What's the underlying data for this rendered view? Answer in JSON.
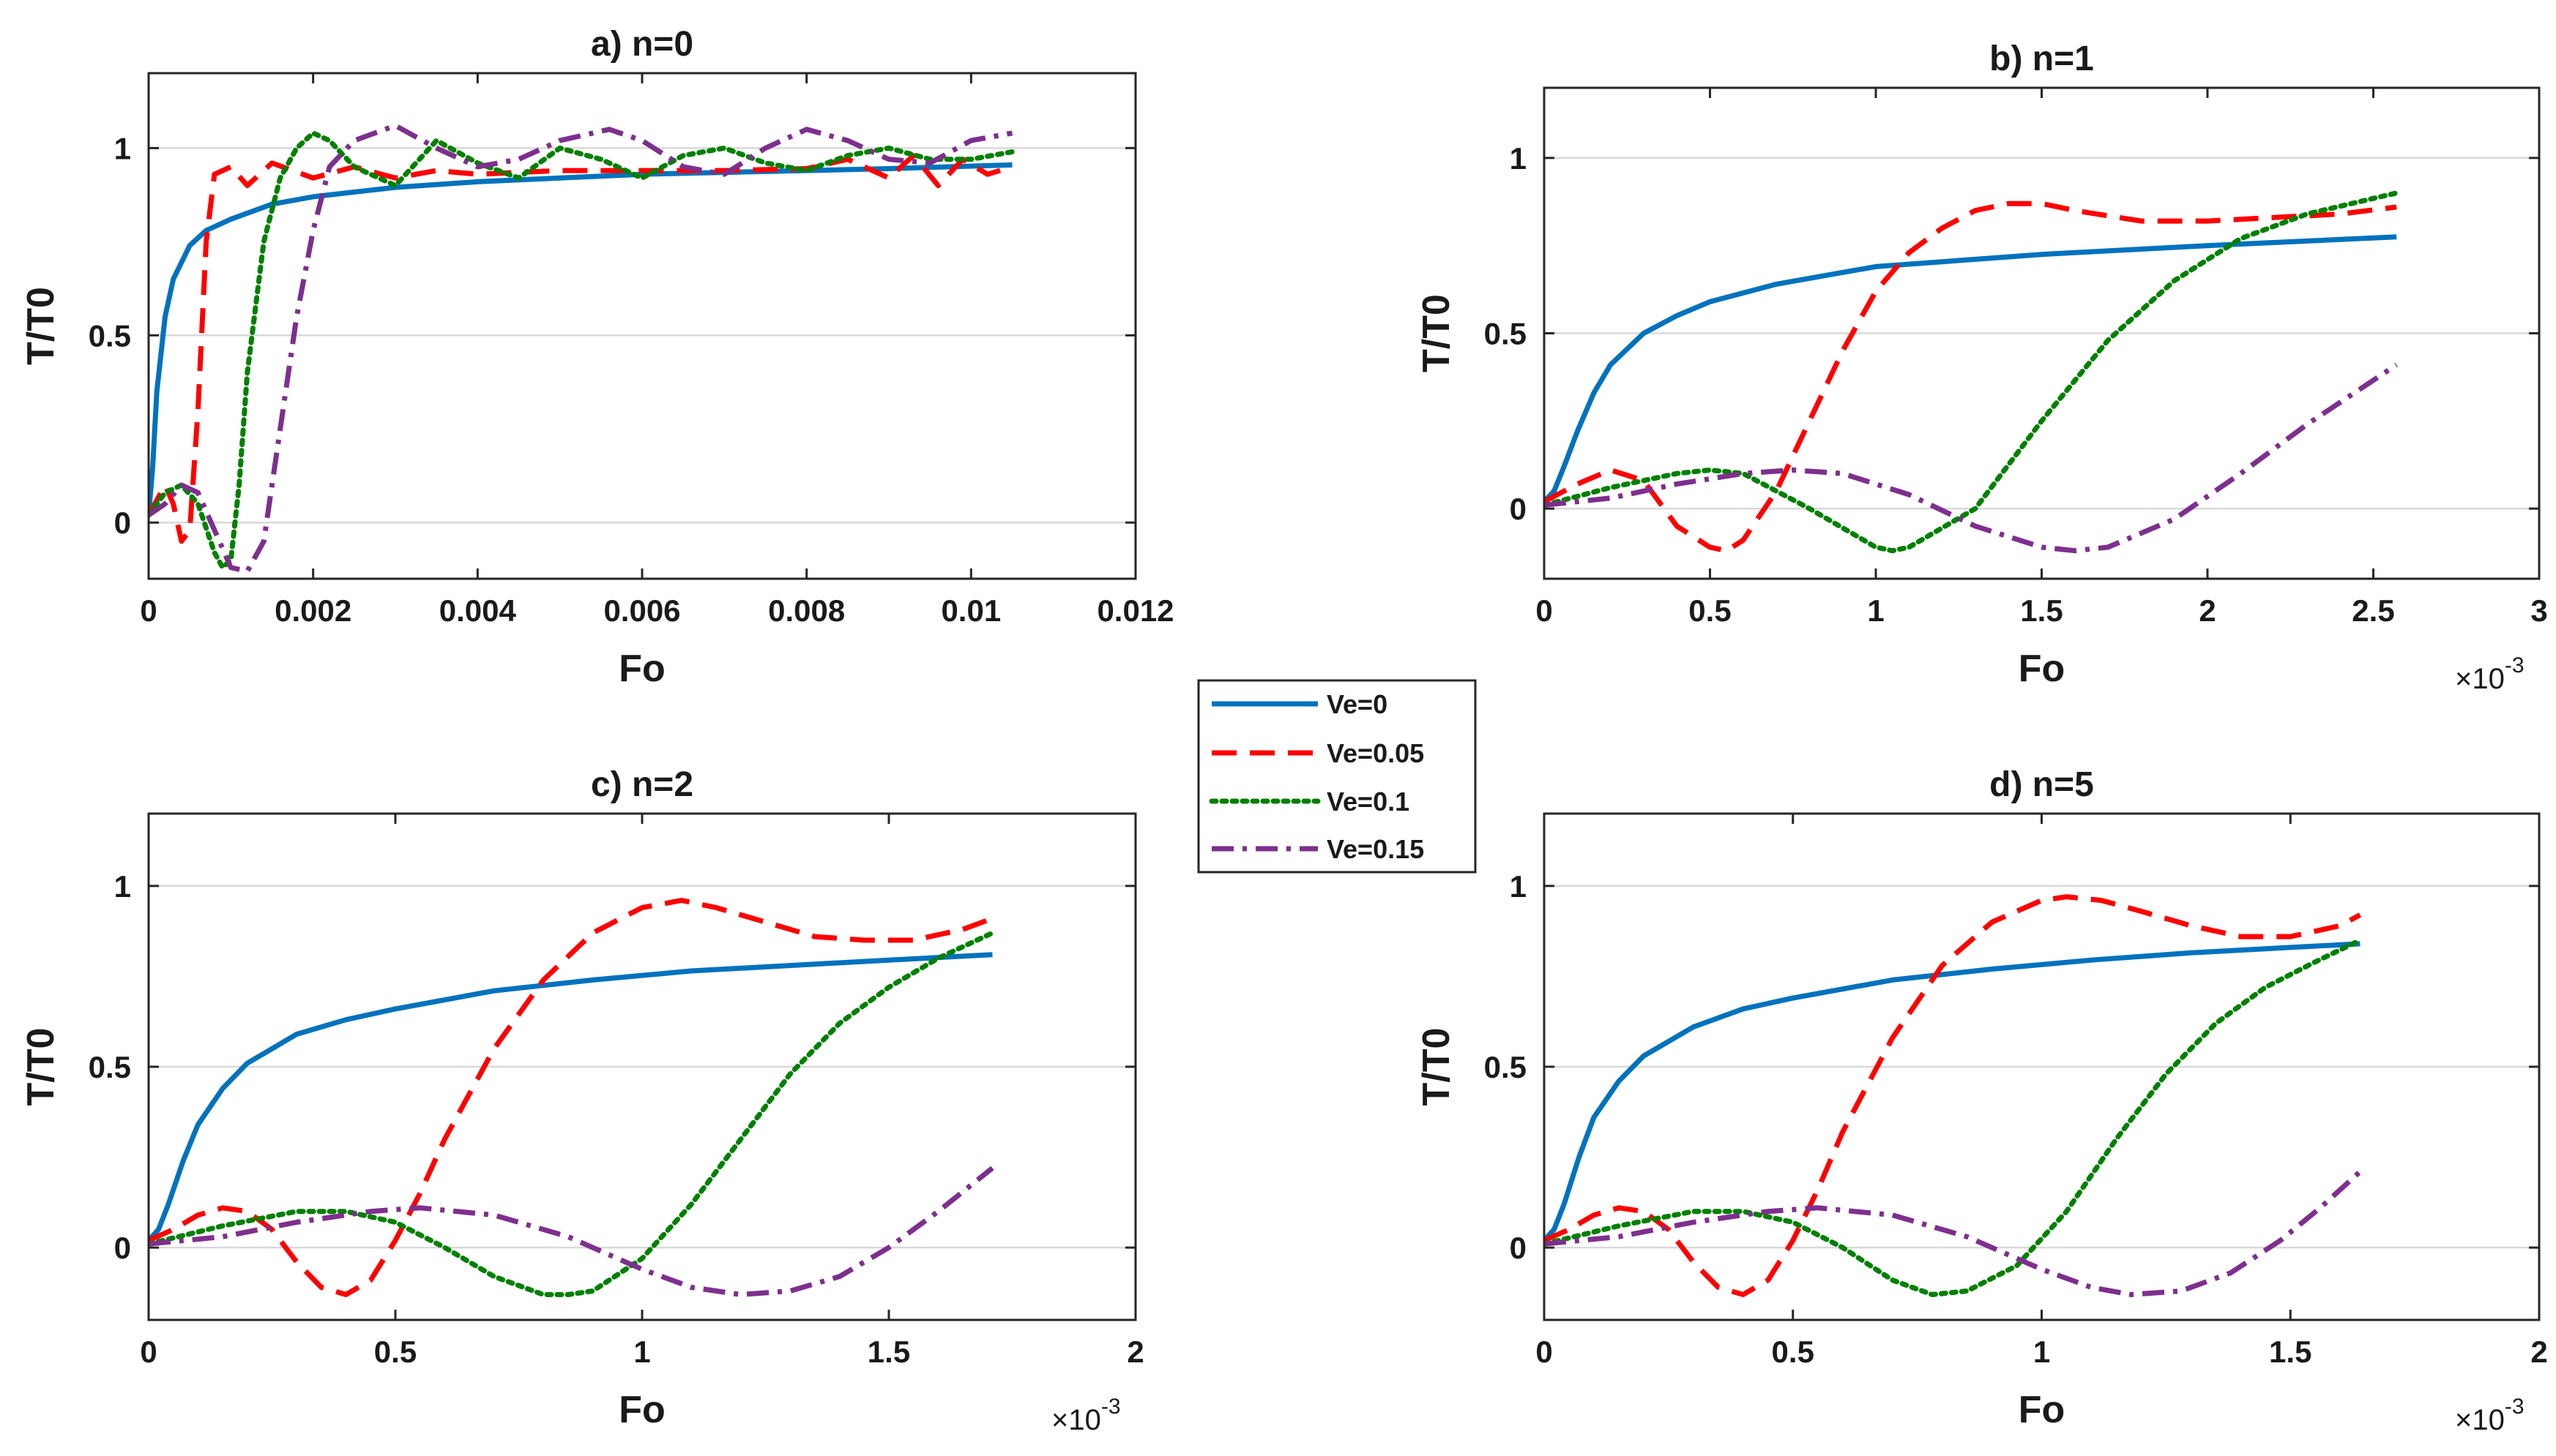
{
  "chart_data": [
    {
      "type": "line",
      "title": "a) n=0",
      "xlabel": "Fo",
      "ylabel": "T/T0",
      "xlim": [
        0,
        0.012
      ],
      "ylim": [
        -0.15,
        1.2
      ],
      "xticks": [
        0,
        0.002,
        0.004,
        0.006,
        0.008,
        0.01,
        0.012
      ],
      "xtick_labels": [
        "0",
        "0.002",
        "0.004",
        "0.006",
        "0.008",
        "0.01",
        "0.012"
      ],
      "yticks": [
        0,
        0.5,
        1
      ],
      "ytick_labels": [
        "0",
        "0.5",
        "1"
      ],
      "x_exponent": "",
      "grid": "horizontal",
      "series": [
        {
          "name": "Ve=0",
          "x": [
            0,
            5e-05,
            0.0001,
            0.0002,
            0.0003,
            0.0005,
            0.0007,
            0.001,
            0.0015,
            0.002,
            0.003,
            0.004,
            0.005,
            0.006,
            0.007,
            0.008,
            0.009,
            0.0105
          ],
          "y": [
            0.02,
            0.15,
            0.35,
            0.55,
            0.65,
            0.74,
            0.78,
            0.81,
            0.85,
            0.87,
            0.895,
            0.91,
            0.92,
            0.93,
            0.935,
            0.94,
            0.945,
            0.955
          ]
        },
        {
          "name": "Ve=0.05",
          "x": [
            0,
            0.0001,
            0.0002,
            0.0003,
            0.0004,
            0.0005,
            0.0006,
            0.0007,
            0.0008,
            0.001,
            0.0012,
            0.0015,
            0.002,
            0.0025,
            0.003,
            0.0035,
            0.004,
            0.005,
            0.006,
            0.007,
            0.008,
            0.0085,
            0.009,
            0.0093,
            0.0096,
            0.0099,
            0.0102,
            0.0105
          ],
          "y": [
            0.02,
            0.06,
            0.1,
            0.05,
            -0.05,
            -0.02,
            0.3,
            0.75,
            0.93,
            0.95,
            0.9,
            0.96,
            0.92,
            0.95,
            0.92,
            0.94,
            0.93,
            0.94,
            0.94,
            0.94,
            0.945,
            0.97,
            0.92,
            0.98,
            0.9,
            0.97,
            0.93,
            0.95
          ]
        },
        {
          "name": "Ve=0.1",
          "x": [
            0,
            0.0002,
            0.0004,
            0.0006,
            0.0008,
            0.0009,
            0.001,
            0.0011,
            0.0012,
            0.0014,
            0.0016,
            0.0018,
            0.002,
            0.0022,
            0.0025,
            0.003,
            0.0035,
            0.004,
            0.0045,
            0.005,
            0.0055,
            0.006,
            0.0065,
            0.007,
            0.0075,
            0.008,
            0.0085,
            0.009,
            0.0095,
            0.01,
            0.0105
          ],
          "y": [
            0.02,
            0.08,
            0.1,
            0.05,
            -0.08,
            -0.12,
            -0.1,
            0.1,
            0.4,
            0.75,
            0.92,
            1.0,
            1.04,
            1.02,
            0.95,
            0.9,
            1.02,
            0.96,
            0.92,
            1.0,
            0.97,
            0.92,
            0.98,
            1.0,
            0.96,
            0.94,
            0.98,
            1.0,
            0.97,
            0.97,
            0.99
          ]
        },
        {
          "name": "Ve=0.15",
          "x": [
            0,
            0.0002,
            0.0004,
            0.0006,
            0.0008,
            0.001,
            0.0012,
            0.0014,
            0.0016,
            0.0018,
            0.002,
            0.0022,
            0.0025,
            0.003,
            0.0035,
            0.004,
            0.0045,
            0.005,
            0.0056,
            0.006,
            0.0065,
            0.007,
            0.0075,
            0.008,
            0.0085,
            0.009,
            0.0095,
            0.01,
            0.0105
          ],
          "y": [
            0.02,
            0.05,
            0.1,
            0.08,
            -0.02,
            -0.12,
            -0.13,
            -0.05,
            0.25,
            0.55,
            0.78,
            0.95,
            1.02,
            1.06,
            1.0,
            0.95,
            0.97,
            1.02,
            1.05,
            1.02,
            0.95,
            0.93,
            1.0,
            1.05,
            1.02,
            0.97,
            0.96,
            1.02,
            1.04
          ]
        }
      ]
    },
    {
      "type": "line",
      "title": "b) n=1",
      "xlabel": "Fo",
      "ylabel": "T/T0",
      "xlim": [
        0,
        3
      ],
      "ylim": [
        -0.2,
        1.2
      ],
      "xticks": [
        0,
        0.5,
        1,
        1.5,
        2,
        2.5,
        3
      ],
      "xtick_labels": [
        "0",
        "0.5",
        "1",
        "1.5",
        "2",
        "2.5",
        "3"
      ],
      "yticks": [
        0,
        0.5,
        1
      ],
      "ytick_labels": [
        "0",
        "0.5",
        "1"
      ],
      "x_exponent": "-3",
      "grid": "horizontal",
      "series": [
        {
          "name": "Ve=0",
          "x": [
            0,
            0.03,
            0.06,
            0.1,
            0.15,
            0.2,
            0.3,
            0.4,
            0.5,
            0.7,
            1.0,
            1.5,
            2.0,
            2.57
          ],
          "y": [
            0.02,
            0.05,
            0.12,
            0.22,
            0.33,
            0.41,
            0.5,
            0.55,
            0.59,
            0.64,
            0.69,
            0.725,
            0.75,
            0.775
          ]
        },
        {
          "name": "Ve=0.05",
          "x": [
            0,
            0.1,
            0.2,
            0.3,
            0.4,
            0.5,
            0.55,
            0.6,
            0.7,
            0.8,
            0.9,
            1.0,
            1.1,
            1.2,
            1.3,
            1.4,
            1.5,
            1.6,
            1.8,
            2.0,
            2.2,
            2.4,
            2.57
          ],
          "y": [
            0.02,
            0.07,
            0.11,
            0.08,
            -0.05,
            -0.11,
            -0.12,
            -0.09,
            0.05,
            0.25,
            0.45,
            0.62,
            0.73,
            0.8,
            0.85,
            0.87,
            0.87,
            0.85,
            0.82,
            0.82,
            0.83,
            0.84,
            0.86
          ]
        },
        {
          "name": "Ve=0.1",
          "x": [
            0,
            0.2,
            0.4,
            0.5,
            0.6,
            0.8,
            1.0,
            1.05,
            1.1,
            1.3,
            1.5,
            1.7,
            1.9,
            2.1,
            2.3,
            2.57
          ],
          "y": [
            0.01,
            0.06,
            0.1,
            0.11,
            0.1,
            0.0,
            -0.11,
            -0.12,
            -0.11,
            0.0,
            0.25,
            0.48,
            0.65,
            0.77,
            0.84,
            0.9
          ]
        },
        {
          "name": "Ve=0.15",
          "x": [
            0,
            0.2,
            0.4,
            0.6,
            0.75,
            0.9,
            1.1,
            1.3,
            1.5,
            1.6,
            1.7,
            1.9,
            2.1,
            2.3,
            2.57
          ],
          "y": [
            0.01,
            0.03,
            0.07,
            0.1,
            0.11,
            0.1,
            0.04,
            -0.05,
            -0.11,
            -0.12,
            -0.11,
            -0.03,
            0.1,
            0.24,
            0.41
          ]
        }
      ]
    },
    {
      "type": "line",
      "title": "c) n=2",
      "xlabel": "Fo",
      "ylabel": "T/T0",
      "xlim": [
        0,
        2
      ],
      "ylim": [
        -0.2,
        1.2
      ],
      "xticks": [
        0,
        0.5,
        1,
        1.5,
        2
      ],
      "xtick_labels": [
        "0",
        "0.5",
        "1",
        "1.5",
        "2"
      ],
      "yticks": [
        0,
        0.5,
        1
      ],
      "ytick_labels": [
        "0",
        "0.5",
        "1"
      ],
      "x_exponent": "-3",
      "grid": "horizontal",
      "series": [
        {
          "name": "Ve=0",
          "x": [
            0,
            0.02,
            0.04,
            0.07,
            0.1,
            0.15,
            0.2,
            0.3,
            0.4,
            0.5,
            0.7,
            0.9,
            1.1,
            1.3,
            1.5,
            1.71
          ],
          "y": [
            0.02,
            0.05,
            0.12,
            0.24,
            0.34,
            0.44,
            0.51,
            0.59,
            0.63,
            0.66,
            0.71,
            0.74,
            0.765,
            0.78,
            0.795,
            0.81
          ]
        },
        {
          "name": "Ve=0.05",
          "x": [
            0,
            0.05,
            0.1,
            0.15,
            0.2,
            0.25,
            0.3,
            0.35,
            0.4,
            0.45,
            0.5,
            0.55,
            0.6,
            0.7,
            0.8,
            0.9,
            1.0,
            1.08,
            1.15,
            1.25,
            1.35,
            1.45,
            1.55,
            1.65,
            1.71
          ],
          "y": [
            0.02,
            0.05,
            0.09,
            0.11,
            0.1,
            0.05,
            -0.04,
            -0.11,
            -0.13,
            -0.09,
            0.02,
            0.15,
            0.3,
            0.55,
            0.74,
            0.87,
            0.94,
            0.96,
            0.94,
            0.9,
            0.86,
            0.85,
            0.85,
            0.88,
            0.91
          ]
        },
        {
          "name": "Ve=0.1",
          "x": [
            0,
            0.15,
            0.3,
            0.4,
            0.5,
            0.6,
            0.7,
            0.8,
            0.85,
            0.9,
            1.0,
            1.1,
            1.2,
            1.3,
            1.4,
            1.5,
            1.6,
            1.71
          ],
          "y": [
            0.01,
            0.06,
            0.1,
            0.1,
            0.07,
            0.0,
            -0.08,
            -0.13,
            -0.13,
            -0.12,
            -0.03,
            0.12,
            0.3,
            0.48,
            0.62,
            0.72,
            0.8,
            0.87
          ]
        },
        {
          "name": "Ve=0.15",
          "x": [
            0,
            0.15,
            0.3,
            0.45,
            0.55,
            0.7,
            0.85,
            1.0,
            1.1,
            1.2,
            1.3,
            1.4,
            1.5,
            1.6,
            1.71
          ],
          "y": [
            0.01,
            0.03,
            0.07,
            0.1,
            0.11,
            0.09,
            0.03,
            -0.06,
            -0.11,
            -0.13,
            -0.12,
            -0.08,
            0.0,
            0.1,
            0.22
          ]
        }
      ]
    },
    {
      "type": "line",
      "title": "d) n=5",
      "xlabel": "Fo",
      "ylabel": "T/T0",
      "xlim": [
        0,
        2
      ],
      "ylim": [
        -0.2,
        1.2
      ],
      "xticks": [
        0,
        0.5,
        1,
        1.5,
        2
      ],
      "xtick_labels": [
        "0",
        "0.5",
        "1",
        "1.5",
        "2"
      ],
      "yticks": [
        0,
        0.5,
        1
      ],
      "ytick_labels": [
        "0",
        "0.5",
        "1"
      ],
      "x_exponent": "-3",
      "grid": "horizontal",
      "series": [
        {
          "name": "Ve=0",
          "x": [
            0,
            0.02,
            0.04,
            0.07,
            0.1,
            0.15,
            0.2,
            0.3,
            0.4,
            0.5,
            0.7,
            0.9,
            1.1,
            1.3,
            1.5,
            1.64
          ],
          "y": [
            0.02,
            0.05,
            0.12,
            0.25,
            0.36,
            0.46,
            0.53,
            0.61,
            0.66,
            0.69,
            0.74,
            0.77,
            0.795,
            0.815,
            0.83,
            0.84
          ]
        },
        {
          "name": "Ve=0.05",
          "x": [
            0,
            0.05,
            0.1,
            0.15,
            0.2,
            0.25,
            0.3,
            0.35,
            0.4,
            0.45,
            0.5,
            0.55,
            0.6,
            0.7,
            0.8,
            0.9,
            1.0,
            1.05,
            1.12,
            1.2,
            1.3,
            1.4,
            1.5,
            1.6,
            1.64
          ],
          "y": [
            0.02,
            0.05,
            0.09,
            0.11,
            0.1,
            0.05,
            -0.04,
            -0.11,
            -0.13,
            -0.09,
            0.02,
            0.16,
            0.32,
            0.58,
            0.78,
            0.9,
            0.96,
            0.97,
            0.96,
            0.93,
            0.89,
            0.86,
            0.86,
            0.89,
            0.92
          ]
        },
        {
          "name": "Ve=0.1",
          "x": [
            0,
            0.15,
            0.3,
            0.4,
            0.5,
            0.6,
            0.7,
            0.78,
            0.85,
            0.95,
            1.05,
            1.15,
            1.25,
            1.35,
            1.45,
            1.55,
            1.64
          ],
          "y": [
            0.01,
            0.06,
            0.1,
            0.1,
            0.07,
            0.0,
            -0.09,
            -0.13,
            -0.12,
            -0.05,
            0.1,
            0.3,
            0.48,
            0.62,
            0.72,
            0.79,
            0.85
          ]
        },
        {
          "name": "Ve=0.15",
          "x": [
            0,
            0.15,
            0.3,
            0.45,
            0.55,
            0.7,
            0.85,
            1.0,
            1.1,
            1.18,
            1.28,
            1.38,
            1.48,
            1.56,
            1.64
          ],
          "y": [
            0.01,
            0.03,
            0.07,
            0.1,
            0.11,
            0.09,
            0.03,
            -0.06,
            -0.11,
            -0.13,
            -0.12,
            -0.07,
            0.02,
            0.11,
            0.21
          ]
        }
      ]
    }
  ],
  "legend": {
    "position": "center",
    "entries": [
      {
        "name": "Ve=0",
        "color": "#0072bd",
        "dash": "solid"
      },
      {
        "name": "Ve=0.05",
        "color": "#ff0000",
        "dash": "dashed"
      },
      {
        "name": "Ve=0.1",
        "color": "#008000",
        "dash": "dotted"
      },
      {
        "name": "Ve=0.15",
        "color": "#7e2f8e",
        "dash": "dashdot"
      }
    ]
  },
  "colors": {
    "axis": "#262626",
    "grid": "#d9d9d9"
  }
}
